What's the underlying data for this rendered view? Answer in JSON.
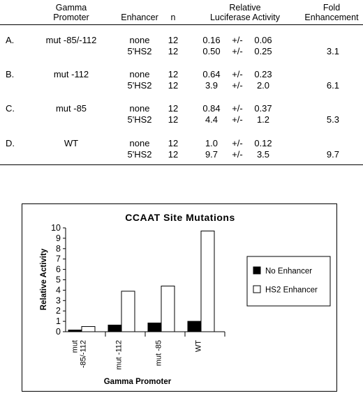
{
  "table": {
    "headers": {
      "promoter_line1": "Gamma",
      "promoter_line2": "Promoter",
      "enhancer": "Enhancer",
      "n": "n",
      "activity_line1": "Relative",
      "activity_line2": "Luciferase Activity",
      "fold_line1": "Fold",
      "fold_line2": "Enhancement"
    },
    "groups": [
      {
        "letter": "A.",
        "promoter": "mut -85/-112",
        "rows": [
          {
            "enhancer": "none",
            "n": "12",
            "mean": "0.16",
            "pm": "+/-",
            "sd": "0.06",
            "fold": ""
          },
          {
            "enhancer": "5'HS2",
            "n": "12",
            "mean": "0.50",
            "pm": "+/-",
            "sd": "0.25",
            "fold": "3.1"
          }
        ]
      },
      {
        "letter": "B.",
        "promoter": "mut -112",
        "rows": [
          {
            "enhancer": "none",
            "n": "12",
            "mean": "0.64",
            "pm": "+/-",
            "sd": "0.23",
            "fold": ""
          },
          {
            "enhancer": "5'HS2",
            "n": "12",
            "mean": "3.9",
            "pm": "+/-",
            "sd": "2.0",
            "fold": "6.1"
          }
        ]
      },
      {
        "letter": "C.",
        "promoter": "mut -85",
        "rows": [
          {
            "enhancer": "none",
            "n": "12",
            "mean": "0.84",
            "pm": "+/-",
            "sd": "0.37",
            "fold": ""
          },
          {
            "enhancer": "5'HS2",
            "n": "12",
            "mean": "4.4",
            "pm": "+/-",
            "sd": "1.2",
            "fold": "5.3"
          }
        ]
      },
      {
        "letter": "D.",
        "promoter": "WT",
        "rows": [
          {
            "enhancer": "none",
            "n": "12",
            "mean": "1.0",
            "pm": "+/-",
            "sd": "0.12",
            "fold": ""
          },
          {
            "enhancer": "5'HS2",
            "n": "12",
            "mean": "9.7",
            "pm": "+/-",
            "sd": "3.5",
            "fold": "9.7"
          }
        ]
      }
    ]
  },
  "chart_data": {
    "type": "bar",
    "title": "CCAAT Site Mutations",
    "xlabel": "Gamma Promoter",
    "ylabel": "Relative Activity",
    "ylim": [
      0,
      10
    ],
    "yticks": [
      0,
      1,
      2,
      3,
      4,
      5,
      6,
      7,
      8,
      9,
      10
    ],
    "categories": [
      "mut -85/-112",
      "mut -112",
      "mut -85",
      "WT"
    ],
    "category_label_lines": [
      [
        "mut",
        "-85/-112"
      ],
      [
        "mut -112"
      ],
      [
        "mut -85"
      ],
      [
        "WT"
      ]
    ],
    "series": [
      {
        "name": "No Enhancer",
        "values": [
          0.16,
          0.64,
          0.84,
          1.0
        ],
        "color": "#000000"
      },
      {
        "name": "HS2 Enhancer",
        "values": [
          0.5,
          3.9,
          4.4,
          9.7
        ],
        "color": "#ffffff"
      }
    ],
    "grid": false,
    "legend_position": "right"
  }
}
